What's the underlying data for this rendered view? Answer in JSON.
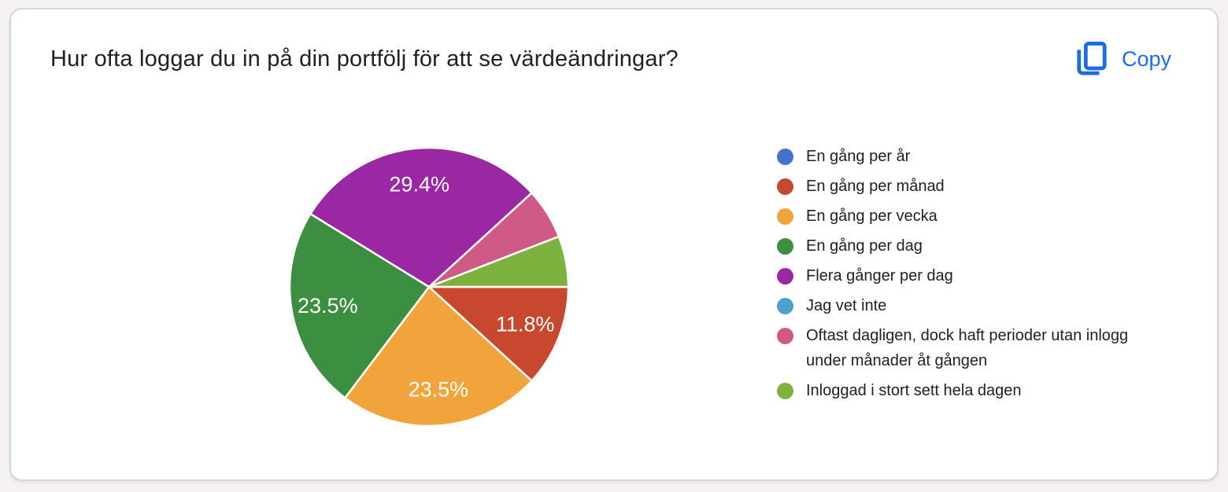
{
  "card": {
    "title": "Hur ofta loggar du in på din portfölj för att se värdeändringar?",
    "copy_label": "Copy",
    "accent_color": "#1e6be8",
    "background": "#ffffff",
    "border_color": "#d3d8de"
  },
  "page_background": "#f4f1f0",
  "chart_data": {
    "type": "pie",
    "title": "Hur ofta loggar du in på din portfölj för att se värdeändringar?",
    "legend_position": "right",
    "start_angle_deg": 0,
    "direction": "clockwise",
    "label_threshold_pct": 10,
    "slice_border_color": "#ffffff",
    "label_color": "#ffffff",
    "categories": [
      "En gång per år",
      "En gång per månad",
      "En gång per vecka",
      "En gång per dag",
      "Flera gånger per dag",
      "Jag vet inte",
      "Oftast dagligen, dock haft perioder utan inlogg under månader åt gången",
      "Inloggad i stort sett hela dagen"
    ],
    "values": [
      0,
      11.8,
      23.5,
      23.5,
      29.4,
      0,
      5.9,
      5.9
    ],
    "pct_labels": [
      "",
      "11.8%",
      "23.5%",
      "23.5%",
      "29.4%",
      "",
      "",
      ""
    ],
    "colors": [
      "#4573c9",
      "#c7482e",
      "#f2a43c",
      "#3c8e40",
      "#9a28a3",
      "#4aa2cc",
      "#d05a87",
      "#7eb23e"
    ]
  }
}
